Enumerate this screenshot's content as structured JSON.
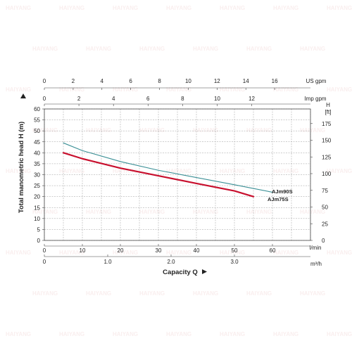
{
  "chart_data": {
    "type": "line",
    "title": "",
    "grid": true,
    "watermark_text": "HAIYANG",
    "colors": {
      "AJm90S": "#3a8f95",
      "AJm75S": "#c8102e",
      "grid": "#9e9e9e",
      "axis": "#444444"
    },
    "x_axis": {
      "label": "Capacity Q",
      "unit": "l/min",
      "range": [
        0,
        70
      ],
      "ticks": [
        0,
        10,
        20,
        30,
        40,
        50,
        60
      ]
    },
    "x_axis_m3h": {
      "unit": "m³/h",
      "range": [
        0,
        4.2
      ],
      "ticks": [
        0,
        1.0,
        2.0,
        3.0
      ],
      "tick_labels": [
        "0",
        "1.0",
        "2.0",
        "3.0"
      ]
    },
    "x_axis_us_gpm": {
      "unit": "US gpm",
      "range": [
        0,
        18.49
      ],
      "ticks": [
        0,
        2,
        4,
        6,
        8,
        10,
        12,
        14,
        16
      ]
    },
    "x_axis_imp_gpm": {
      "unit": "Imp gpm",
      "range": [
        0,
        15.4
      ],
      "ticks": [
        0,
        2,
        4,
        6,
        8,
        10,
        12
      ]
    },
    "y_axis": {
      "label": "Total manometric head H (m)",
      "range": [
        0,
        60
      ],
      "ticks": [
        0,
        5,
        10,
        15,
        20,
        25,
        30,
        35,
        40,
        45,
        50,
        55,
        60
      ]
    },
    "y_axis_ft": {
      "label": "H",
      "unit": "[ft]",
      "range": [
        0,
        196.85
      ],
      "ticks": [
        0,
        25,
        50,
        75,
        100,
        125,
        150,
        175
      ]
    },
    "series": [
      {
        "name": "AJm90S",
        "x": [
          5,
          10,
          20,
          30,
          40,
          50,
          60
        ],
        "y": [
          44.5,
          41,
          36,
          32,
          28.7,
          25.4,
          22
        ]
      },
      {
        "name": "AJm75S",
        "x": [
          5,
          10,
          20,
          30,
          40,
          50,
          55
        ],
        "y": [
          40,
          37.3,
          33,
          29.5,
          26,
          22.6,
          20
        ]
      }
    ]
  }
}
